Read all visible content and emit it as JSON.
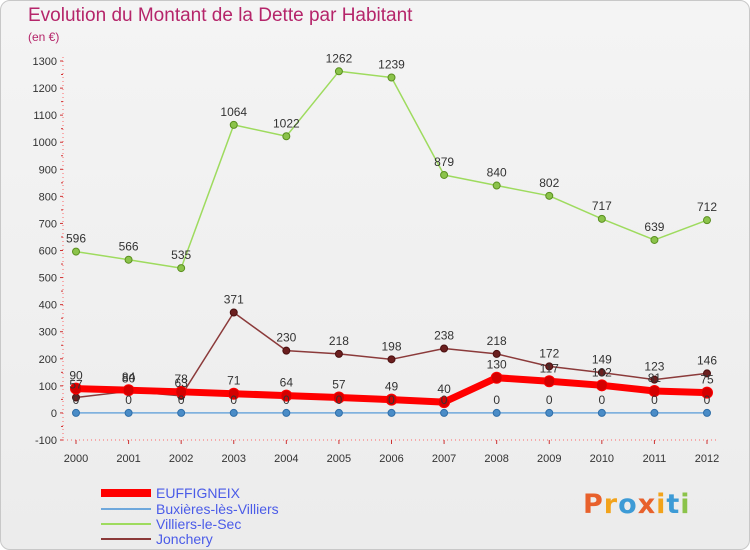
{
  "header": {
    "title": "Evolution du Montant de la Dette par Habitant",
    "unit": "(en €)"
  },
  "logo": {
    "text": "Proxiti",
    "colors": [
      "#e8612c",
      "#f2a31b",
      "#3d9bd6",
      "#e8612c",
      "#f2a31b",
      "#3d9bd6",
      "#8bc34a"
    ]
  },
  "chart_data": {
    "type": "line",
    "title": "Evolution du Montant de la Dette par Habitant",
    "ylabel": "(en €)",
    "xlabel": "",
    "ylim": [
      -100,
      1300
    ],
    "yticks": [
      -100,
      0,
      100,
      200,
      300,
      400,
      500,
      600,
      700,
      800,
      900,
      1000,
      1100,
      1200,
      1300
    ],
    "grid": false,
    "legend_position": "bottom-left",
    "x": [
      "2000",
      "2001",
      "2002",
      "2003",
      "2004",
      "2005",
      "2006",
      "2007",
      "2008",
      "2009",
      "2010",
      "2011",
      "2012"
    ],
    "series": [
      {
        "name": "EUFFIGNEIX",
        "color": "#ff0000",
        "values": [
          90,
          84,
          78,
          71,
          64,
          57,
          49,
          40,
          130,
          117,
          102,
          81,
          75
        ]
      },
      {
        "name": "Buxières-lès-Villiers",
        "color": "#5b9bd5",
        "values": [
          0,
          0,
          0,
          0,
          0,
          0,
          0,
          0,
          0,
          0,
          0,
          0,
          0
        ]
      },
      {
        "name": "Villiers-le-Sec",
        "color": "#8fd24a",
        "values": [
          596,
          566,
          535,
          1064,
          1022,
          1262,
          1239,
          879,
          840,
          802,
          717,
          639,
          712
        ]
      },
      {
        "name": "Jonchery",
        "color": "#7a2a2a",
        "values": [
          57,
          80,
          63,
          371,
          230,
          218,
          198,
          238,
          218,
          172,
          149,
          123,
          146
        ]
      }
    ]
  }
}
